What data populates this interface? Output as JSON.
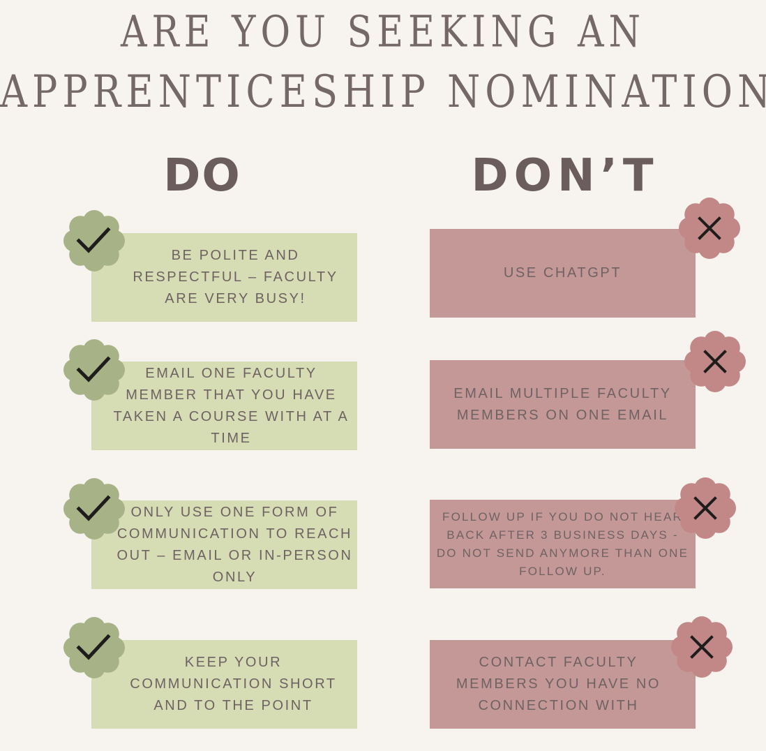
{
  "title": {
    "line1": "ARE YOU SEEKING AN",
    "line2": "APPRENTICESHIP NOMINATION?"
  },
  "columns": {
    "do_heading": "DO",
    "dont_heading": "DON’T"
  },
  "colors": {
    "background": "#f7f3ef",
    "do_box": "#d6dcb4",
    "do_badge": "#a7b287",
    "dont_box": "#c59898",
    "dont_badge": "#c28888",
    "text": "#6e5f5f"
  },
  "do_items": [
    {
      "text": "BE POLITE AND RESPECTFUL – FACULTY ARE VERY BUSY!",
      "icon": "check-icon"
    },
    {
      "text": "EMAIL ONE FACULTY MEMBER THAT YOU HAVE TAKEN A COURSE WITH AT A TIME",
      "icon": "check-icon"
    },
    {
      "text": "ONLY USE ONE FORM OF COMMUNICATION TO REACH OUT – EMAIL OR IN-PERSON ONLY",
      "icon": "check-icon"
    },
    {
      "text": "KEEP YOUR COMMUNICATION SHORT AND TO THE POINT",
      "icon": "check-icon"
    }
  ],
  "dont_items": [
    {
      "text": "USE CHATGPT",
      "icon": "x-icon"
    },
    {
      "text": "EMAIL MULTIPLE FACULTY MEMBERS ON ONE EMAIL",
      "icon": "x-icon"
    },
    {
      "text": "FOLLOW UP IF YOU DO NOT HEAR BACK AFTER 3 BUSINESS DAYS - DO NOT SEND ANYMORE THAN ONE FOLLOW UP.",
      "icon": "x-icon"
    },
    {
      "text": "CONTACT FACULTY MEMBERS YOU HAVE NO CONNECTION WITH",
      "icon": "x-icon"
    }
  ]
}
